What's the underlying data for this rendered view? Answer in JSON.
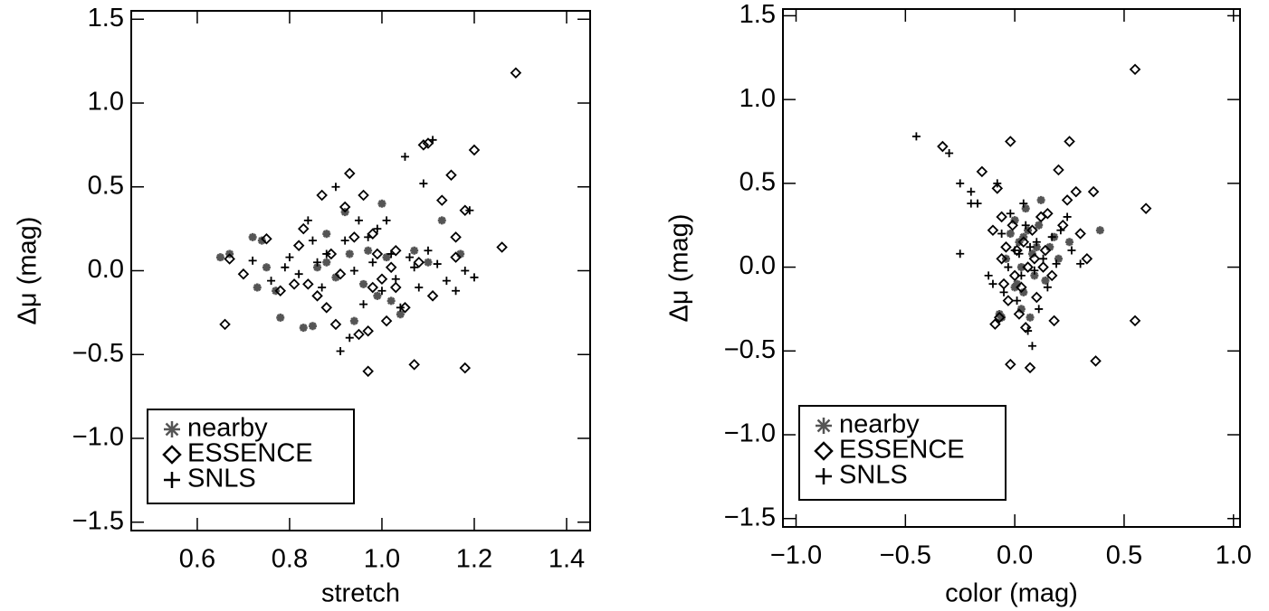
{
  "chart_data": [
    {
      "type": "scatter",
      "xlabel": "stretch",
      "ylabel": "Δμ (mag)",
      "legend": "lower left",
      "xlim": [
        0.457,
        1.451
      ],
      "ylim": [
        -1.55,
        1.55
      ],
      "xticks": [
        0.6,
        0.8,
        {
          "value": 1.0,
          "label": "1.0"
        },
        1.2,
        1.4
      ],
      "yticks": [
        {
          "value": -1.5,
          "label": "−1.5"
        },
        {
          "value": -1.0,
          "label": "−1.0"
        },
        {
          "value": -0.5,
          "label": "−0.5"
        },
        {
          "value": 0,
          "label": "0.0"
        },
        0.5,
        {
          "value": 1.0,
          "label": "1.0"
        },
        1.5
      ],
      "series": [
        {
          "name": "nearby",
          "color": "#555555",
          "marker": "asterisk",
          "x": [
            0.65,
            0.67,
            0.72,
            0.73,
            0.74,
            0.77,
            0.78,
            0.83,
            0.85,
            0.86,
            0.88,
            0.9,
            0.92,
            0.93,
            0.94,
            0.97,
            0.99,
            1.0,
            1.01,
            1.02,
            1.04,
            1.07,
            1.1,
            1.13,
            1.17,
            0.88,
            0.96,
            0.75
          ],
          "values": [
            0.08,
            0.1,
            0.2,
            -0.1,
            0.18,
            -0.12,
            -0.28,
            -0.34,
            -0.33,
            0.02,
            0.05,
            -0.04,
            0.35,
            0.1,
            -0.3,
            0.12,
            -0.15,
            0.4,
            0.08,
            -0.18,
            -0.26,
            0.12,
            0.05,
            0.3,
            0.1,
            0.22,
            -0.08,
            0.02
          ]
        },
        {
          "name": "ESSENCE",
          "color": "#000000",
          "marker": "diamond",
          "x": [
            0.66,
            0.67,
            0.7,
            0.75,
            0.78,
            0.81,
            0.82,
            0.83,
            0.84,
            0.86,
            0.87,
            0.88,
            0.89,
            0.9,
            0.91,
            0.92,
            0.93,
            0.94,
            0.95,
            0.96,
            0.97,
            0.97,
            0.98,
            0.99,
            1.0,
            1.01,
            1.02,
            1.03,
            1.05,
            1.07,
            1.08,
            1.09,
            1.1,
            1.11,
            1.13,
            1.15,
            1.16,
            1.18,
            1.18,
            1.2,
            1.26,
            1.29,
            1.16,
            1.03,
            0.98
          ],
          "values": [
            -0.32,
            0.07,
            -0.02,
            0.19,
            -0.12,
            -0.08,
            0.15,
            0.25,
            -0.08,
            -0.15,
            0.45,
            -0.22,
            0.1,
            -0.32,
            -0.02,
            0.38,
            0.58,
            0.2,
            -0.38,
            0.45,
            -0.6,
            -0.36,
            -0.1,
            0.1,
            -0.05,
            -0.3,
            0.02,
            0.12,
            -0.22,
            -0.56,
            0.05,
            0.75,
            0.76,
            -0.15,
            0.42,
            0.57,
            0.08,
            0.36,
            -0.58,
            0.72,
            0.14,
            1.18,
            0.2,
            -0.1,
            0.22
          ]
        },
        {
          "name": "SNLS",
          "color": "#000000",
          "marker": "plus",
          "x": [
            0.72,
            0.76,
            0.79,
            0.8,
            0.82,
            0.84,
            0.85,
            0.87,
            0.88,
            0.9,
            0.91,
            0.92,
            0.94,
            0.95,
            0.96,
            0.97,
            0.98,
            1.0,
            1.01,
            1.02,
            1.03,
            1.04,
            1.05,
            1.06,
            1.07,
            1.08,
            1.09,
            1.1,
            1.11,
            1.12,
            1.14,
            1.16,
            1.18,
            1.19,
            1.2,
            0.93,
            0.86,
            0.99
          ],
          "values": [
            0.06,
            -0.06,
            0.02,
            0.08,
            -0.02,
            0.3,
            0.18,
            -0.1,
            0.1,
            0.5,
            -0.48,
            0.18,
            0.0,
            0.3,
            -0.2,
            0.2,
            0.05,
            -0.12,
            0.3,
            0.1,
            -0.05,
            -0.22,
            0.68,
            0.08,
            0.02,
            -0.1,
            0.52,
            0.12,
            0.78,
            0.04,
            -0.06,
            -0.12,
            0.0,
            0.36,
            -0.04,
            -0.4,
            0.05,
            0.25
          ]
        }
      ]
    },
    {
      "type": "scatter",
      "xlabel": "color (mag)",
      "ylabel": "Δμ (mag)",
      "legend": "lower left",
      "xlim": [
        -1.06,
        1.03
      ],
      "ylim": [
        -1.55,
        1.54
      ],
      "xticks": [
        {
          "value": -1.0,
          "label": "−1.0"
        },
        {
          "value": -0.5,
          "label": "−0.5"
        },
        {
          "value": 0,
          "label": "0.0"
        },
        0.5,
        {
          "value": 1.0,
          "label": "1.0"
        }
      ],
      "yticks": [
        {
          "value": -1.5,
          "label": "−1.5"
        },
        {
          "value": -1.0,
          "label": "−1.0"
        },
        {
          "value": -0.5,
          "label": "−0.5"
        },
        {
          "value": 0,
          "label": "0.0"
        },
        0.5,
        {
          "value": 1.0,
          "label": "1.0"
        },
        1.5
      ],
      "series": [
        {
          "name": "nearby",
          "color": "#555555",
          "marker": "asterisk",
          "x": [
            -0.07,
            -0.04,
            -0.02,
            0.0,
            0.01,
            0.02,
            0.03,
            0.04,
            0.05,
            0.06,
            0.07,
            0.08,
            0.09,
            0.1,
            0.12,
            0.14,
            0.18,
            0.2,
            0.25,
            0.39,
            -0.06,
            0.0,
            0.04,
            0.11,
            0.03,
            0.16
          ],
          "values": [
            -0.28,
            0.05,
            0.2,
            0.28,
            -0.1,
            0.15,
            0.0,
            -0.15,
            0.35,
            0.22,
            -0.3,
            0.08,
            -0.05,
            0.12,
            0.4,
            -0.08,
            0.18,
            0.05,
            0.15,
            0.22,
            -0.3,
            -0.12,
            0.18,
            0.25,
            -0.25,
            0.12
          ]
        },
        {
          "name": "ESSENCE",
          "color": "#000000",
          "marker": "diamond",
          "x": [
            -0.33,
            -0.15,
            -0.08,
            -0.1,
            -0.09,
            -0.07,
            -0.06,
            -0.05,
            -0.04,
            -0.03,
            -0.02,
            -0.02,
            -0.01,
            0.0,
            0.01,
            0.02,
            0.03,
            0.04,
            0.05,
            0.06,
            0.07,
            0.08,
            0.09,
            0.1,
            0.12,
            0.13,
            0.15,
            0.17,
            0.18,
            0.2,
            0.22,
            0.24,
            0.25,
            0.28,
            0.3,
            0.33,
            0.36,
            0.37,
            0.55,
            0.55,
            0.6,
            0.14,
            -0.06
          ],
          "values": [
            0.72,
            0.57,
            0.47,
            0.22,
            -0.34,
            -0.3,
            0.05,
            -0.1,
            0.12,
            -0.2,
            0.75,
            -0.58,
            0.25,
            -0.05,
            0.1,
            -0.28,
            -0.12,
            0.15,
            -0.36,
            0.0,
            -0.6,
            0.22,
            0.05,
            -0.18,
            0.3,
            0.0,
            0.32,
            -0.05,
            -0.32,
            0.58,
            0.25,
            0.4,
            0.75,
            0.45,
            0.2,
            0.05,
            0.45,
            -0.56,
            1.18,
            -0.32,
            0.35,
            0.1,
            0.3
          ]
        },
        {
          "name": "SNLS",
          "color": "#000000",
          "marker": "plus",
          "x": [
            -0.45,
            -0.3,
            -0.25,
            -0.2,
            -0.17,
            -0.2,
            -0.25,
            -0.12,
            -0.08,
            -0.06,
            -0.05,
            -0.03,
            -0.02,
            0.0,
            0.01,
            0.02,
            0.03,
            0.05,
            0.06,
            0.07,
            0.08,
            0.09,
            0.1,
            0.11,
            0.13,
            0.15,
            0.17,
            0.19,
            0.21,
            0.24,
            0.26,
            0.3,
            -0.1,
            0.04
          ],
          "values": [
            0.78,
            0.68,
            0.5,
            0.38,
            0.38,
            0.45,
            0.08,
            -0.05,
            0.5,
            0.2,
            -0.15,
            0.0,
            0.32,
            0.1,
            -0.2,
            0.08,
            -0.05,
            0.25,
            -0.38,
            0.12,
            -0.47,
            -0.02,
            0.15,
            -0.25,
            0.05,
            -0.12,
            0.18,
            0.02,
            0.22,
            0.3,
            0.1,
            0.02,
            -0.1,
            0.38
          ]
        }
      ]
    }
  ]
}
